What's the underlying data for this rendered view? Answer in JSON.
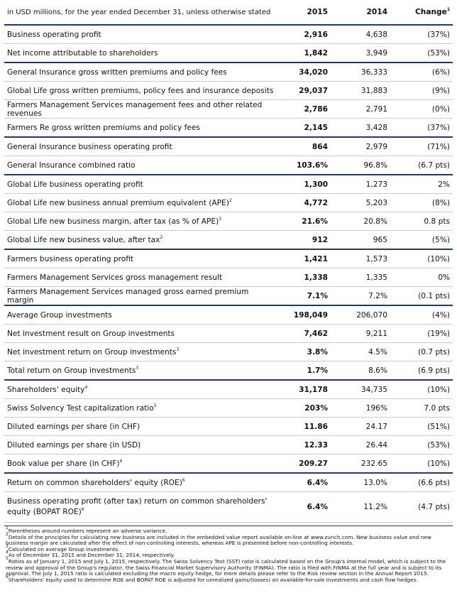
{
  "table": {
    "header": {
      "label": "in USD millions, for the year ended December 31, unless otherwise stated",
      "col_2015": "2015",
      "col_2014": "2014",
      "change": "Change",
      "change_note": "1"
    },
    "groups": [
      {
        "rows": [
          {
            "label": "Business operating profit",
            "cells": [
              "2,916",
              "4,638",
              "(37%)"
            ]
          },
          {
            "label": "Net income attributable to shareholders",
            "cells": [
              "1,842",
              "3,949",
              "(53%)"
            ]
          }
        ]
      },
      {
        "rows": [
          {
            "label": "General Insurance gross written premiums and policy fees",
            "cells": [
              "34,020",
              "36,333",
              "(6%)"
            ]
          },
          {
            "label": "Global Life gross written premiums, policy fees and insurance deposits",
            "cells": [
              "29,037",
              "31,883",
              "(9%)"
            ]
          },
          {
            "label": "Farmers Management Services management fees and other related revenues",
            "cells": [
              "2,786",
              "2,791",
              "(0%)"
            ]
          },
          {
            "label": "Farmers Re gross written premiums and policy fees",
            "cells": [
              "2,145",
              "3,428",
              "(37%)"
            ]
          }
        ]
      },
      {
        "rows": [
          {
            "label": "General Insurance business operating profit",
            "cells": [
              "864",
              "2,979",
              "(71%)"
            ]
          },
          {
            "label": "General Insurance combined ratio",
            "cells": [
              "103.6%",
              "96.8%",
              "(6.7 pts)"
            ]
          }
        ]
      },
      {
        "rows": [
          {
            "label": "Global Life business operating profit",
            "cells": [
              "1,300",
              "1,273",
              "2%"
            ]
          },
          {
            "label": "Global Life new business annual premium equivalent (APE)",
            "note": "2",
            "cells": [
              "4,772",
              "5,203",
              "(8%)"
            ]
          },
          {
            "label": "Global Life new business margin, after tax (as % of APE)",
            "note": "3",
            "cells": [
              "21.6%",
              "20.8%",
              "0.8 pts"
            ]
          },
          {
            "label": "Global Life new business value, after tax",
            "note": "2",
            "cells": [
              "912",
              "965",
              "(5%)"
            ]
          }
        ]
      },
      {
        "rows": [
          {
            "label": "Farmers business operating profit",
            "cells": [
              "1,421",
              "1,573",
              "(10%)"
            ]
          },
          {
            "label": "Farmers Management Services gross management result",
            "cells": [
              "1,338",
              "1,335",
              "0%"
            ]
          },
          {
            "label": "Farmers Management Services managed gross earned premium margin",
            "cells": [
              "7.1%",
              "7.2%",
              "(0.1 pts)"
            ]
          }
        ]
      },
      {
        "rows": [
          {
            "label": "Average Group investments",
            "cells": [
              "198,049",
              "206,070",
              "(4%)"
            ]
          },
          {
            "label": "Net investment result on Group investments",
            "cells": [
              "7,462",
              "9,211",
              "(19%)"
            ]
          },
          {
            "label": "Net investment return on Group investments",
            "note": "3",
            "cells": [
              "3.8%",
              "4.5%",
              "(0.7 pts)"
            ]
          },
          {
            "label": "Total return on Group investments",
            "note": "3",
            "cells": [
              "1.7%",
              "8.6%",
              "(6.9 pts)"
            ]
          }
        ]
      },
      {
        "rows": [
          {
            "label": "Shareholders' equity",
            "note": "4",
            "cells": [
              "31,178",
              "34,735",
              "(10%)"
            ]
          },
          {
            "label": "Swiss Solvency Test capitalization ratio",
            "note": "5",
            "cells": [
              "203%",
              "196%",
              "7.0 pts"
            ]
          },
          {
            "label": "Diluted earnings per share (in CHF)",
            "cells": [
              "11.86",
              "24.17",
              "(51%)"
            ]
          },
          {
            "label": "Diluted earnings per share (in USD)",
            "cells": [
              "12.33",
              "26.44",
              "(53%)"
            ]
          },
          {
            "label": "Book value per share (in CHF)",
            "note": "4",
            "cells": [
              "209.27",
              "232.65",
              "(10%)"
            ]
          }
        ]
      },
      {
        "rows": [
          {
            "label": "Return on common shareholders' equity (ROE)",
            "note": "6",
            "cells": [
              "6.4%",
              "13.0%",
              "(6.6 pts)"
            ]
          },
          {
            "label": "Business operating profit (after tax) return on common shareholders' equity (BOPAT ROE)",
            "note": "6",
            "cells": [
              "6.4%",
              "11.2%",
              "(4.7 pts)"
            ]
          }
        ]
      }
    ],
    "footnotes": [
      {
        "number": "1",
        "text": "Parentheses around numbers represent an adverse variance."
      },
      {
        "number": "2",
        "text": "Details of the principles for calculating new business are included in the embedded value report available on-line at www.zurich.com. New business value and new business margin are calculated after the effect of non-controlling interests, whereas APE is presented before non-controlling interests."
      },
      {
        "number": "3",
        "text": "Calculated on average Group investments."
      },
      {
        "number": "4",
        "text": "As of December 31, 2015 and December 31, 2014, respectively."
      },
      {
        "number": "5",
        "text": "Ratios as of January 1, 2015 and July 1, 2015, respectively. The Swiss Solvency Test (SST) ratio is calculated based on the Group's internal model, which is subject to the review and approval of the Group's regulator, the Swiss Financial Market Supervisory Authority (FINMA). The ratio is filed with FINMA at the full year and is subject to its approval. The July 1, 2015 ratio is calculated excluding the macro equity hedge, for more details please refer to the Risk review section in the Annual Report 2015."
      },
      {
        "number": "6",
        "text": "Shareholders' equity used to determine ROE and BOPAT ROE is adjusted for unrealized gains/(losses) on available-for-sale investments and cash flow hedges."
      }
    ]
  }
}
